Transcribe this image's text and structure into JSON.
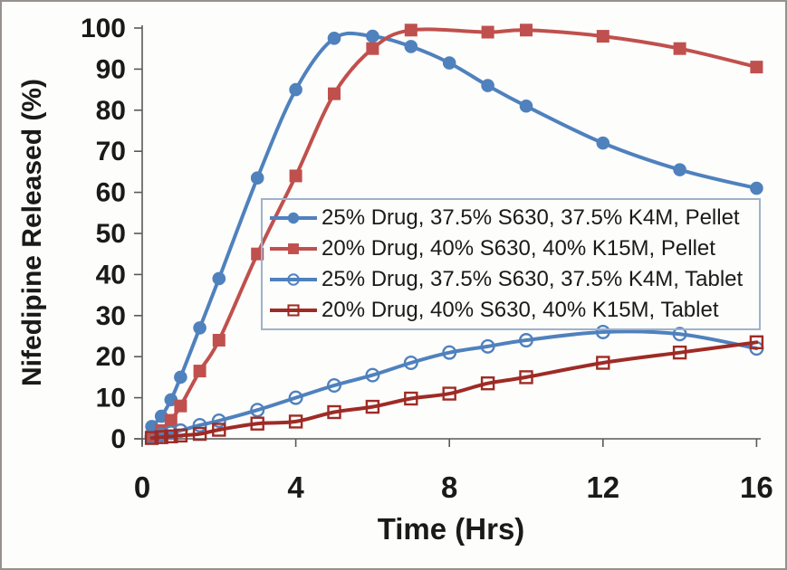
{
  "chart_data": {
    "type": "line",
    "title": "",
    "xlabel": "Time (Hrs)",
    "ylabel": "Nifedipine Released (%)",
    "xlim": [
      0,
      16
    ],
    "ylim": [
      0,
      100
    ],
    "xticks": [
      0,
      4,
      8,
      12,
      16
    ],
    "yticks": [
      0,
      10,
      20,
      30,
      40,
      50,
      60,
      70,
      80,
      90,
      100
    ],
    "grid": false,
    "legend_position": "inside-center-right-box",
    "axis_color": "#595959",
    "legend_border_color": "#9fb2ca",
    "series": [
      {
        "name": "25% Drug, 37.5% S630, 37.5% K4M, Pellet",
        "marker": "circle-filled",
        "color": "#4F81BD",
        "x": [
          0.25,
          0.5,
          0.75,
          1,
          1.5,
          2,
          3,
          4,
          5,
          6,
          7,
          8,
          9,
          10,
          12,
          14,
          16
        ],
        "y": [
          3,
          5.5,
          9.5,
          15,
          27,
          39,
          63.5,
          85,
          97.5,
          98,
          95.5,
          91.5,
          86,
          81,
          72,
          65.5,
          61
        ]
      },
      {
        "name": "20% Drug, 40% S630, 40% K15M, Pellet",
        "marker": "square-filled",
        "color": "#C0504D",
        "x": [
          0.25,
          0.5,
          0.75,
          1,
          1.5,
          2,
          3,
          4,
          5,
          6,
          7,
          9,
          10,
          12,
          14,
          16
        ],
        "y": [
          0.5,
          2,
          4.5,
          8,
          16.5,
          24,
          45,
          64,
          84,
          95,
          99.5,
          99,
          99.5,
          98,
          95,
          90.5
        ]
      },
      {
        "name": "25% Drug, 37.5% S630, 37.5% K4M, Tablet",
        "marker": "circle-open",
        "color": "#4F81BD",
        "x": [
          0.25,
          0.5,
          0.75,
          1,
          1.5,
          2,
          3,
          4,
          5,
          6,
          7,
          8,
          9,
          10,
          12,
          14,
          16
        ],
        "y": [
          0.5,
          1,
          1.5,
          2,
          3.3,
          4.4,
          7,
          10,
          13,
          15.5,
          18.5,
          21,
          22.5,
          24,
          26,
          25.5,
          22
        ]
      },
      {
        "name": "20% Drug, 40% S630, 40% K15M, Tablet",
        "marker": "square-open",
        "color": "#9E2B25",
        "x": [
          0.25,
          0.5,
          0.75,
          1,
          1.5,
          2,
          3,
          4,
          5,
          6,
          7,
          8,
          9,
          10,
          12,
          14,
          16
        ],
        "y": [
          0.2,
          0.4,
          0.6,
          0.8,
          1.2,
          2.2,
          3.7,
          4.2,
          6.5,
          7.8,
          9.8,
          11,
          13.5,
          15,
          18.5,
          21,
          23.5
        ]
      }
    ]
  }
}
